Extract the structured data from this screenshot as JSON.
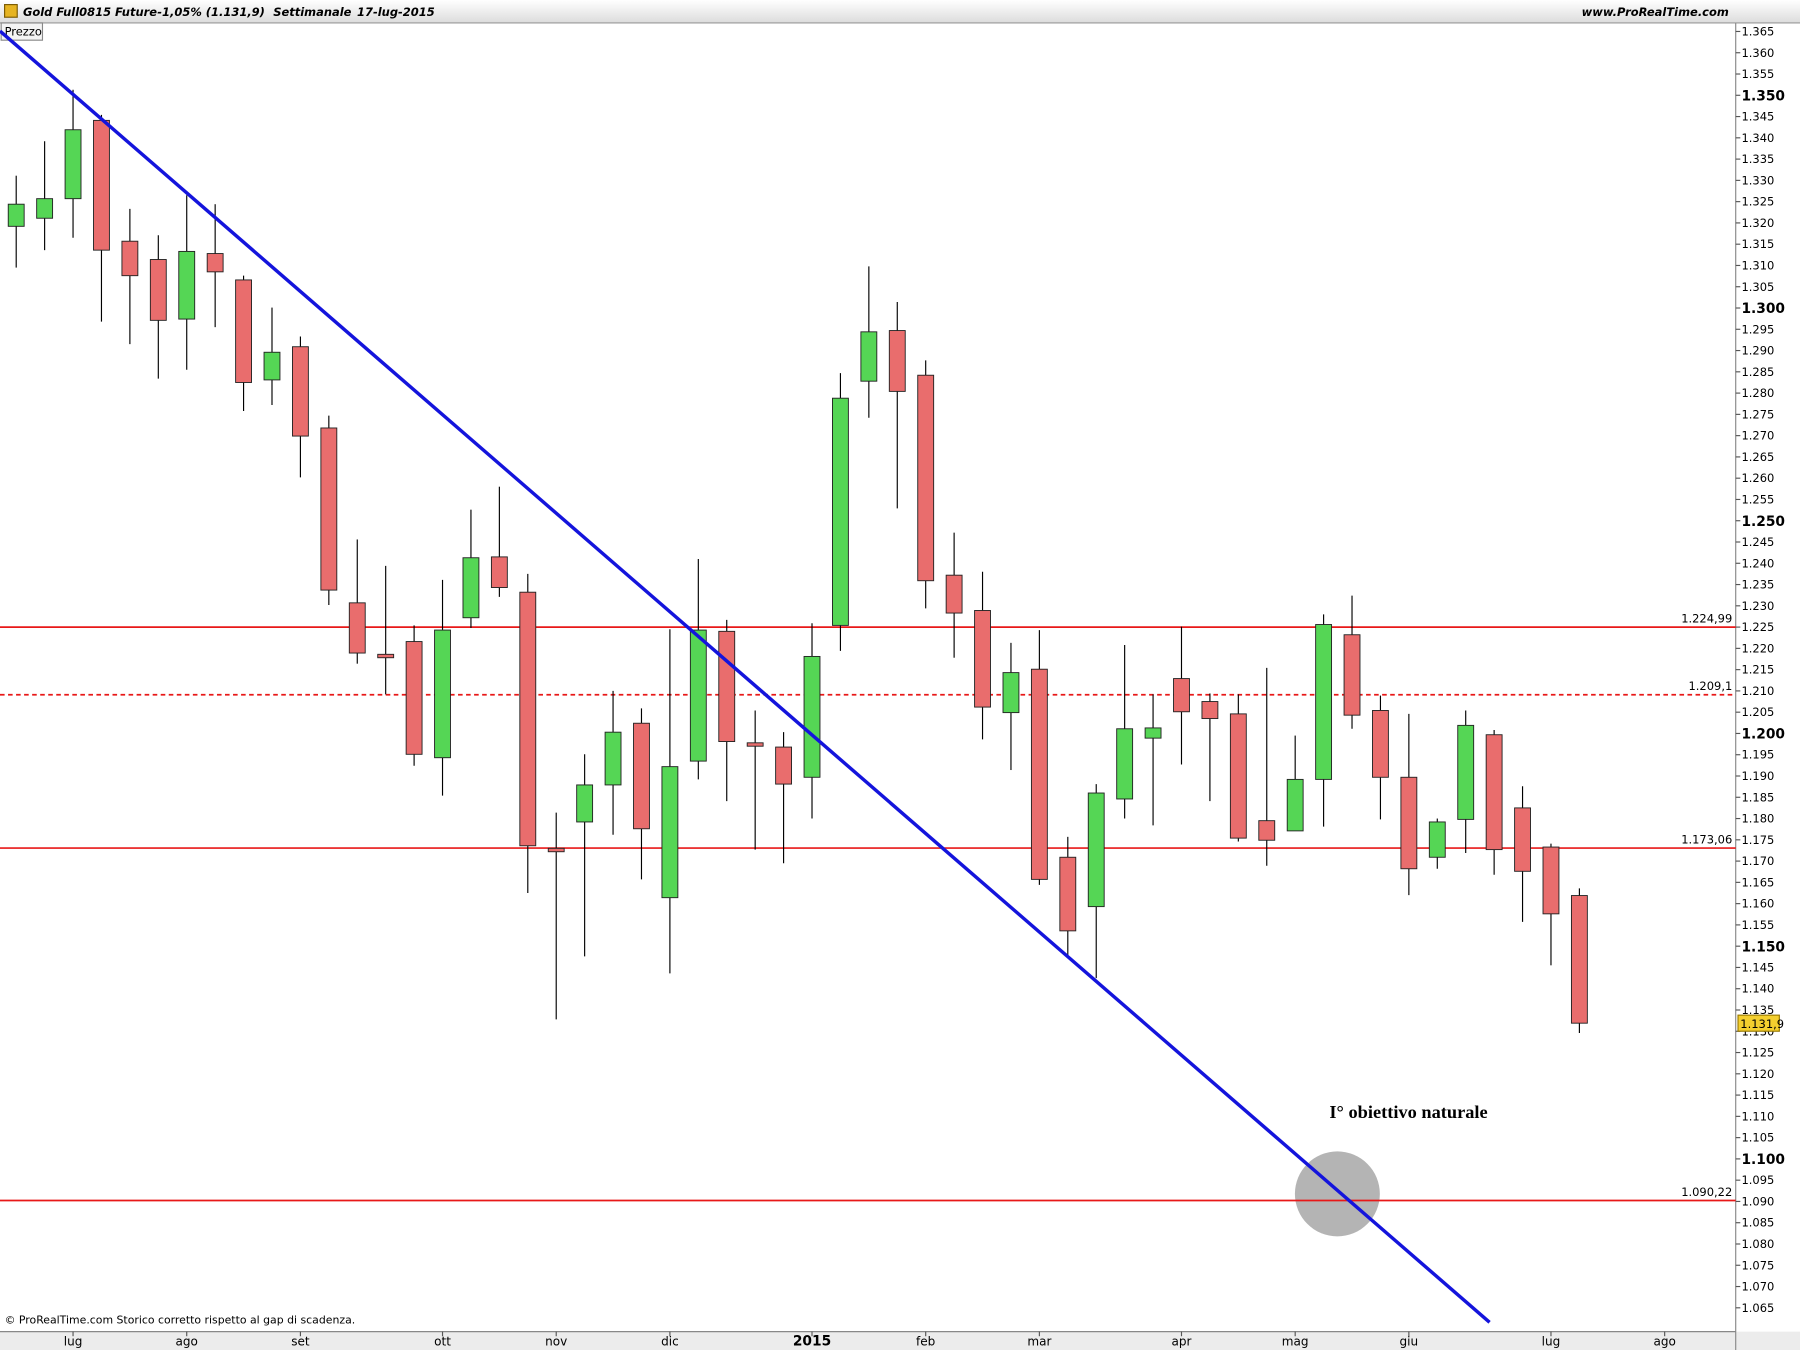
{
  "chart_data": {
    "type": "candlestick",
    "title": "Gold Full0815 Future",
    "change_text": "-1,05% (1.131,9)",
    "period": "Settimanale",
    "date": "17-lug-2015",
    "site": "www.ProRealTime.com",
    "panel_label": "Prezzo",
    "footer": "© ProRealTime.com Storico corretto rispetto al gap di scadenza.",
    "annotation": "I° obiettivo naturale",
    "last_price_label": "1.131,9",
    "up_color": "#55d655",
    "down_color": "#e96d6d",
    "trend_color": "#1414dc",
    "level_color": "#e81818",
    "x": [
      0,
      1,
      2,
      3,
      4,
      5,
      6,
      7,
      8,
      9,
      10,
      11,
      12,
      13,
      14,
      15,
      16,
      17,
      18,
      19,
      20,
      21,
      22,
      23,
      24,
      25,
      26,
      27,
      28,
      29,
      30,
      31,
      32,
      33,
      34,
      35,
      36,
      37,
      38,
      39,
      40,
      41,
      42,
      43,
      44,
      45,
      46,
      47,
      48,
      49,
      50,
      51,
      52,
      53,
      54,
      55
    ],
    "open": [
      1319.2,
      1321.1,
      1325.7,
      1344.1,
      1315.7,
      1311.4,
      1297.4,
      1312.8,
      1306.6,
      1283.1,
      1290.9,
      1271.8,
      1230.7,
      1218.6,
      1221.6,
      1194.3,
      1227.2,
      1241.5,
      1233.2,
      1173.0,
      1179.2,
      1187.9,
      1202.4,
      1161.4,
      1193.5,
      1224.0,
      1197.8,
      1196.8,
      1189.7,
      1225.4,
      1282.8,
      1294.7,
      1284.2,
      1237.2,
      1228.9,
      1204.9,
      1215.1,
      1170.9,
      1159.3,
      1184.6,
      1198.9,
      1212.9,
      1207.5,
      1204.6,
      1179.5,
      1177.1,
      1189.2,
      1223.2,
      1205.4,
      1189.7,
      1170.9,
      1179.8,
      1199.7,
      1182.5,
      1173.3,
      1161.9
    ],
    "high": [
      1331.1,
      1339.2,
      1351.3,
      1345.4,
      1323.3,
      1317.1,
      1326.5,
      1324.4,
      1307.6,
      1300.1,
      1293.3,
      1274.7,
      1245.6,
      1239.4,
      1225.4,
      1236.1,
      1252.6,
      1258.0,
      1237.5,
      1181.4,
      1195.1,
      1210.0,
      1205.9,
      1224.5,
      1241.0,
      1226.7,
      1205.4,
      1200.3,
      1225.9,
      1284.7,
      1309.8,
      1301.4,
      1287.7,
      1247.2,
      1238.0,
      1221.3,
      1224.3,
      1175.7,
      1188.1,
      1220.8,
      1209.2,
      1225.1,
      1209.4,
      1209.2,
      1215.4,
      1199.5,
      1228.0,
      1232.4,
      1208.9,
      1204.6,
      1180.0,
      1205.4,
      1200.8,
      1187.6,
      1174.1,
      1163.6
    ],
    "low": [
      1309.5,
      1313.6,
      1316.5,
      1296.8,
      1291.5,
      1283.4,
      1285.5,
      1295.5,
      1275.8,
      1277.2,
      1260.2,
      1230.2,
      1216.4,
      1209.2,
      1192.4,
      1185.4,
      1224.8,
      1232.1,
      1162.5,
      1132.8,
      1147.6,
      1176.2,
      1165.7,
      1143.6,
      1189.2,
      1184.1,
      1172.7,
      1169.5,
      1180.0,
      1219.4,
      1274.2,
      1252.9,
      1229.4,
      1217.8,
      1198.6,
      1191.4,
      1164.4,
      1147.4,
      1142.5,
      1180.0,
      1178.4,
      1192.7,
      1184.1,
      1174.6,
      1168.9,
      1177.1,
      1178.1,
      1201.1,
      1179.8,
      1162.0,
      1168.2,
      1171.9,
      1166.8,
      1155.7,
      1145.5,
      1129.6
    ],
    "close": [
      1324.4,
      1325.7,
      1341.9,
      1313.6,
      1307.6,
      1297.1,
      1313.3,
      1308.5,
      1282.5,
      1289.6,
      1269.9,
      1233.7,
      1218.9,
      1217.8,
      1195.1,
      1224.3,
      1241.3,
      1234.3,
      1173.6,
      1172.2,
      1187.9,
      1200.3,
      1177.6,
      1192.2,
      1224.3,
      1198.1,
      1197.0,
      1188.1,
      1218.1,
      1278.8,
      1294.4,
      1280.4,
      1235.9,
      1228.3,
      1206.2,
      1214.3,
      1165.7,
      1153.6,
      1186.0,
      1201.1,
      1201.3,
      1205.1,
      1203.5,
      1175.4,
      1174.9,
      1189.2,
      1225.6,
      1204.3,
      1189.7,
      1168.2,
      1179.2,
      1201.9,
      1172.7,
      1167.6,
      1157.6,
      1131.9
    ],
    "xlim": [
      -0.57,
      60.5
    ],
    "ylim": [
      1059.4,
      1367.0
    ],
    "xticks": [
      {
        "value": 2,
        "label": "lug"
      },
      {
        "value": 6,
        "label": "ago"
      },
      {
        "value": 10,
        "label": "set"
      },
      {
        "value": 15,
        "label": "ott"
      },
      {
        "value": 19,
        "label": "nov"
      },
      {
        "value": 23,
        "label": "dic"
      },
      {
        "value": 28,
        "label": "2015"
      },
      {
        "value": 32,
        "label": "feb"
      },
      {
        "value": 36,
        "label": "mar"
      },
      {
        "value": 41,
        "label": "apr"
      },
      {
        "value": 45,
        "label": "mag"
      },
      {
        "value": 49,
        "label": "giu"
      },
      {
        "value": 54,
        "label": "lug"
      },
      {
        "value": 58,
        "label": "ago"
      }
    ],
    "yticks": [
      {
        "value": 1065,
        "label": "1.065"
      },
      {
        "value": 1070,
        "label": "1.070"
      },
      {
        "value": 1075,
        "label": "1.075"
      },
      {
        "value": 1080,
        "label": "1.080"
      },
      {
        "value": 1085,
        "label": "1.085"
      },
      {
        "value": 1090,
        "label": "1.090"
      },
      {
        "value": 1095,
        "label": "1.095"
      },
      {
        "value": 1100,
        "label": "1.100"
      },
      {
        "value": 1105,
        "label": "1.105"
      },
      {
        "value": 1110,
        "label": "1.110"
      },
      {
        "value": 1115,
        "label": "1.115"
      },
      {
        "value": 1120,
        "label": "1.120"
      },
      {
        "value": 1125,
        "label": "1.125"
      },
      {
        "value": 1130,
        "label": "1.130"
      },
      {
        "value": 1135,
        "label": "1.135"
      },
      {
        "value": 1140,
        "label": "1.140"
      },
      {
        "value": 1145,
        "label": "1.145"
      },
      {
        "value": 1150,
        "label": "1.150"
      },
      {
        "value": 1155,
        "label": "1.155"
      },
      {
        "value": 1160,
        "label": "1.160"
      },
      {
        "value": 1165,
        "label": "1.165"
      },
      {
        "value": 1170,
        "label": "1.170"
      },
      {
        "value": 1175,
        "label": "1.175"
      },
      {
        "value": 1180,
        "label": "1.180"
      },
      {
        "value": 1185,
        "label": "1.185"
      },
      {
        "value": 1190,
        "label": "1.190"
      },
      {
        "value": 1195,
        "label": "1.195"
      },
      {
        "value": 1200,
        "label": "1.200"
      },
      {
        "value": 1205,
        "label": "1.205"
      },
      {
        "value": 1210,
        "label": "1.210"
      },
      {
        "value": 1215,
        "label": "1.215"
      },
      {
        "value": 1220,
        "label": "1.220"
      },
      {
        "value": 1225,
        "label": "1.225"
      },
      {
        "value": 1230,
        "label": "1.230"
      },
      {
        "value": 1235,
        "label": "1.235"
      },
      {
        "value": 1240,
        "label": "1.240"
      },
      {
        "value": 1245,
        "label": "1.245"
      },
      {
        "value": 1250,
        "label": "1.250"
      },
      {
        "value": 1255,
        "label": "1.255"
      },
      {
        "value": 1260,
        "label": "1.260"
      },
      {
        "value": 1265,
        "label": "1.265"
      },
      {
        "value": 1270,
        "label": "1.270"
      },
      {
        "value": 1275,
        "label": "1.275"
      },
      {
        "value": 1280,
        "label": "1.280"
      },
      {
        "value": 1285,
        "label": "1.285"
      },
      {
        "value": 1290,
        "label": "1.290"
      },
      {
        "value": 1295,
        "label": "1.295"
      },
      {
        "value": 1300,
        "label": "1.300"
      },
      {
        "value": 1305,
        "label": "1.305"
      },
      {
        "value": 1310,
        "label": "1.310"
      },
      {
        "value": 1315,
        "label": "1.315"
      },
      {
        "value": 1320,
        "label": "1.320"
      },
      {
        "value": 1325,
        "label": "1.325"
      },
      {
        "value": 1330,
        "label": "1.330"
      },
      {
        "value": 1335,
        "label": "1.335"
      },
      {
        "value": 1340,
        "label": "1.340"
      },
      {
        "value": 1345,
        "label": "1.345"
      },
      {
        "value": 1350,
        "label": "1.350"
      },
      {
        "value": 1355,
        "label": "1.355"
      },
      {
        "value": 1360,
        "label": "1.360"
      },
      {
        "value": 1365,
        "label": "1.365"
      }
    ],
    "levels": [
      {
        "value": 1224.99,
        "label": "1.224,99",
        "dashed": false
      },
      {
        "value": 1209.1,
        "label": "1.209,1",
        "dashed": true
      },
      {
        "value": 1173.06,
        "label": "1.173,06",
        "dashed": false
      },
      {
        "value": 1090.22,
        "label": "1.090,22",
        "dashed": false
      }
    ],
    "trendline": {
      "x": [
        -0.57,
        51.84
      ],
      "y": [
        1365.1,
        1061.6
      ]
    }
  }
}
